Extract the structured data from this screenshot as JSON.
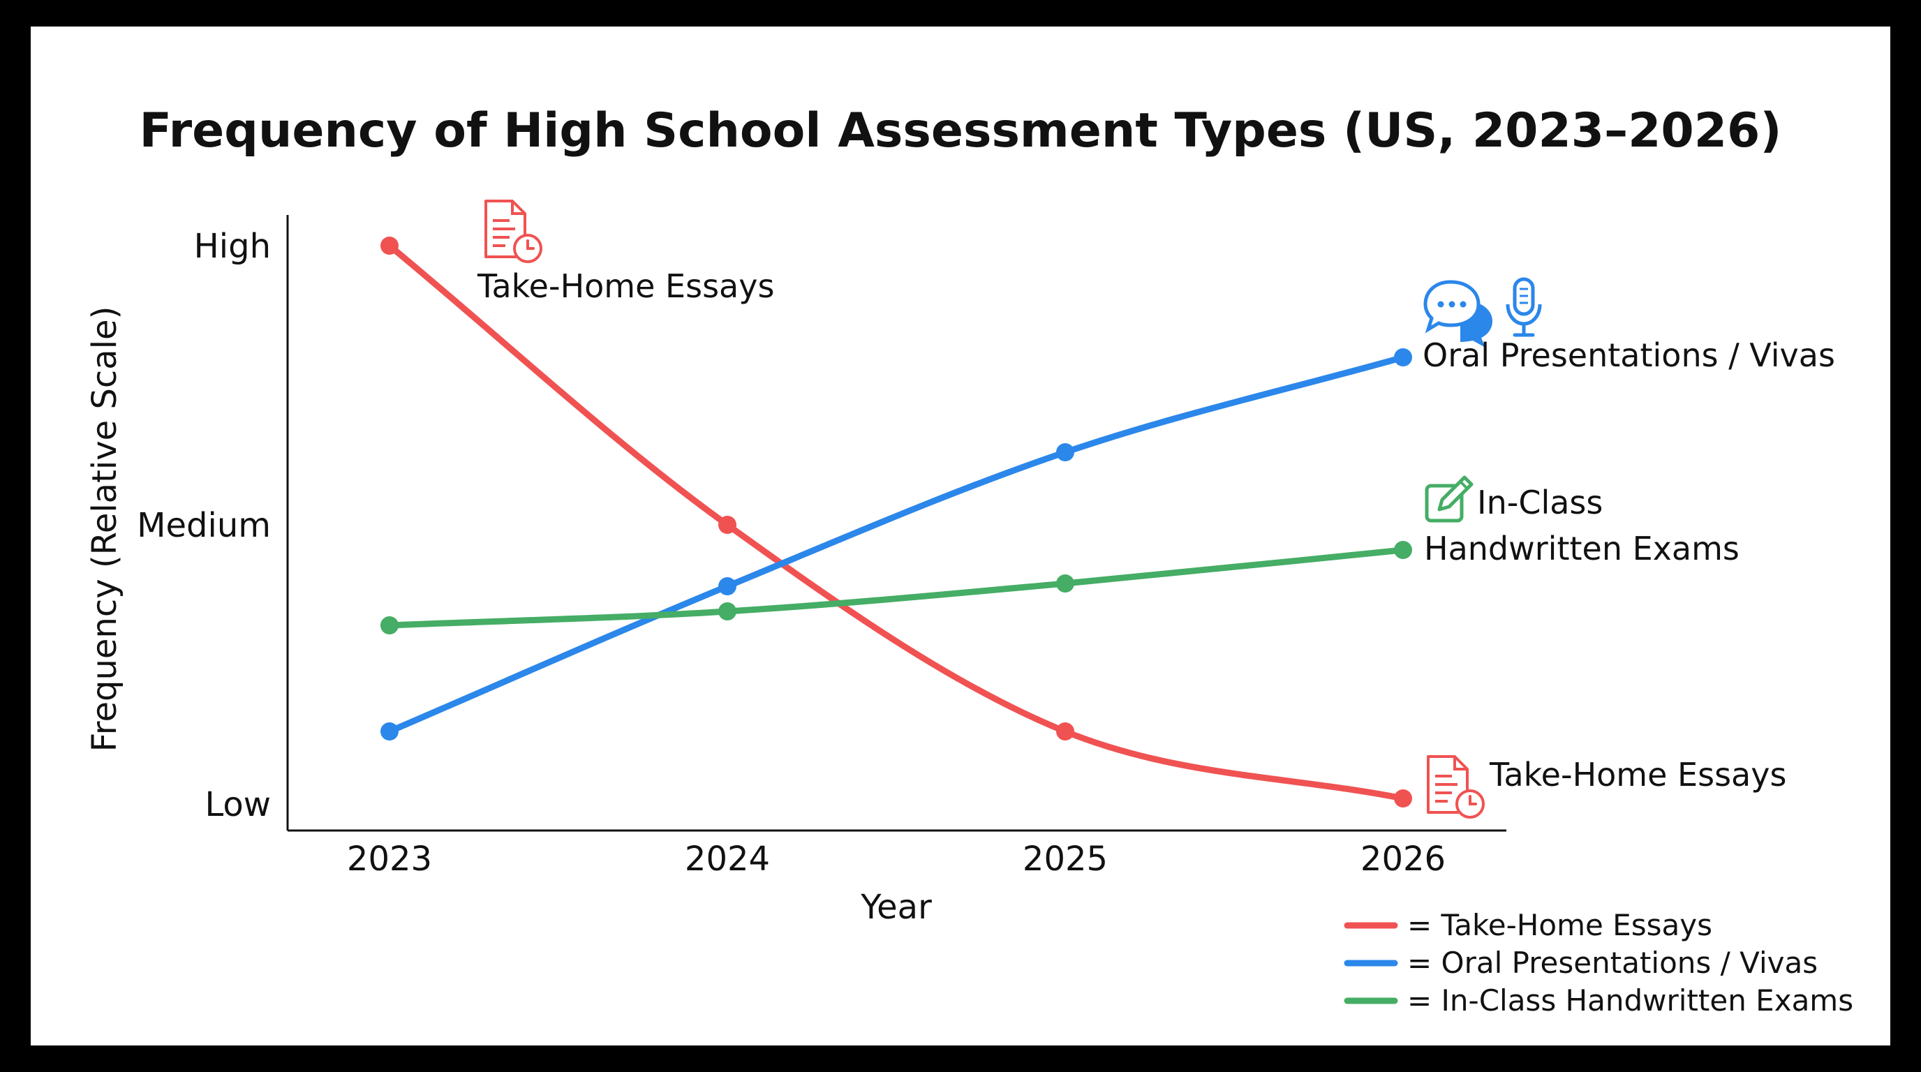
{
  "chart_data": {
    "type": "line",
    "title": "Frequency of High School Assessment Types (US, 2023–2026)",
    "xlabel": "Year",
    "ylabel": "Frequency (Relative Scale)",
    "categories": [
      "2023",
      "2024",
      "2025",
      "2026"
    ],
    "y_ticks": [
      {
        "label": "High",
        "value": 1.0
      },
      {
        "label": "Medium",
        "value": 0.5
      },
      {
        "label": "Low",
        "value": 0.0
      }
    ],
    "ylim": [
      0,
      1
    ],
    "grid": false,
    "legend_position": "bottom-right",
    "series": [
      {
        "name": "Take-Home Essays",
        "color": "#f05252",
        "values": [
          1.0,
          0.5,
          0.13,
          0.01
        ],
        "icon": "document-clock-icon"
      },
      {
        "name": "Oral Presentations / Vivas",
        "color": "#2b87ea",
        "values": [
          0.13,
          0.39,
          0.63,
          0.8
        ],
        "icon": "chat-microphone-icon"
      },
      {
        "name": "In-Class Handwritten Exams",
        "color": "#45ad65",
        "values": [
          0.32,
          0.345,
          0.395,
          0.455
        ],
        "icon": "pencil-note-icon"
      }
    ],
    "annotations": {
      "take_home_start": "Take-Home Essays",
      "take_home_end": "Take-Home Essays",
      "oral_end": "Oral Presentations / Vivas",
      "inclass_end_line1": "In-Class",
      "inclass_end_line2": "Handwritten Exams"
    },
    "legend": [
      "= Take-Home Essays",
      "= Oral Presentations / Vivas",
      "= In-Class Handwritten Exams"
    ]
  }
}
